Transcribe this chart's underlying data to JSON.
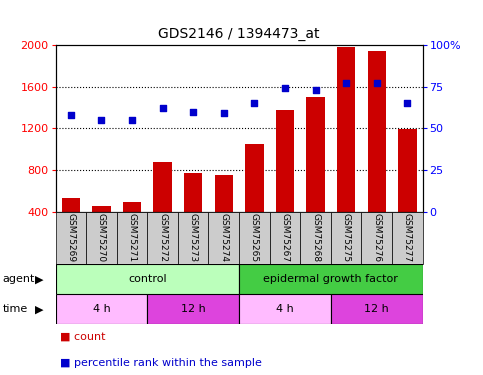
{
  "title": "GDS2146 / 1394473_at",
  "samples": [
    "GSM75269",
    "GSM75270",
    "GSM75271",
    "GSM75272",
    "GSM75273",
    "GSM75274",
    "GSM75265",
    "GSM75267",
    "GSM75268",
    "GSM75275",
    "GSM75276",
    "GSM75277"
  ],
  "counts": [
    530,
    460,
    490,
    880,
    770,
    750,
    1050,
    1380,
    1500,
    1980,
    1940,
    1190
  ],
  "percentiles": [
    58,
    55,
    55,
    62,
    60,
    59,
    65,
    74,
    73,
    77,
    77,
    65
  ],
  "bar_color": "#cc0000",
  "dot_color": "#0000cc",
  "ylim_left": [
    400,
    2000
  ],
  "ylim_right": [
    0,
    100
  ],
  "yticks_left": [
    400,
    800,
    1200,
    1600,
    2000
  ],
  "yticks_right": [
    0,
    25,
    50,
    75,
    100
  ],
  "ytick_labels_right": [
    "0",
    "25",
    "50",
    "75",
    "100%"
  ],
  "grid_yticks": [
    800,
    1200,
    1600
  ],
  "agent_groups": [
    {
      "label": "control",
      "start": 0,
      "end": 6,
      "color": "#bbffbb"
    },
    {
      "label": "epidermal growth factor",
      "start": 6,
      "end": 12,
      "color": "#44cc44"
    }
  ],
  "time_groups": [
    {
      "label": "4 h",
      "start": 0,
      "end": 3,
      "color": "#ffbbff"
    },
    {
      "label": "12 h",
      "start": 3,
      "end": 6,
      "color": "#dd44dd"
    },
    {
      "label": "4 h",
      "start": 6,
      "end": 9,
      "color": "#ffbbff"
    },
    {
      "label": "12 h",
      "start": 9,
      "end": 12,
      "color": "#dd44dd"
    }
  ],
  "plot_bg": "#ffffff",
  "label_row_bg": "#cccccc",
  "legend_items": [
    {
      "label": "count",
      "color": "#cc0000"
    },
    {
      "label": "percentile rank within the sample",
      "color": "#0000cc"
    }
  ],
  "n_samples": 12
}
